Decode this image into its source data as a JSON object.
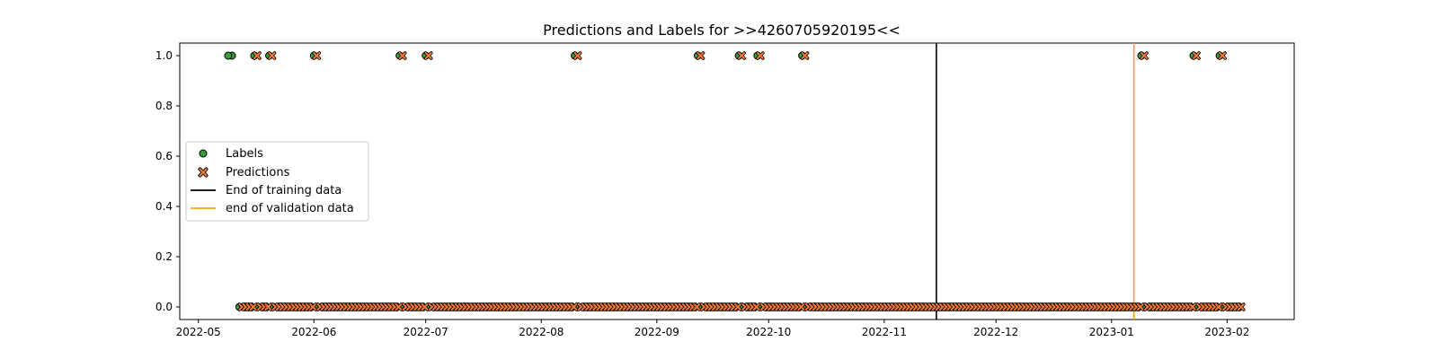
{
  "chart_data": {
    "type": "scatter",
    "title": "Predictions and Labels for >>4260705920195<<",
    "xlabel": "",
    "ylabel": "",
    "x_start": "2022-05-12",
    "x_end": "2023-02-04",
    "xlim": [
      "2022-04-26",
      "2023-02-19"
    ],
    "ylim": [
      -0.05,
      1.05
    ],
    "x_ticks": [
      "2022-05",
      "2022-06",
      "2022-07",
      "2022-08",
      "2022-09",
      "2022-10",
      "2022-11",
      "2022-12",
      "2023-01",
      "2023-02"
    ],
    "y_ticks": [
      "0.0",
      "0.2",
      "0.4",
      "0.6",
      "0.8",
      "1.0"
    ],
    "positive_dates": [
      "2022-05-09",
      "2022-05-10",
      "2022-05-16",
      "2022-05-20",
      "2022-06-01",
      "2022-06-24",
      "2022-07-01",
      "2022-08-10",
      "2022-09-12",
      "2022-09-23",
      "2022-09-28",
      "2022-10-10",
      "2023-01-09",
      "2023-01-23",
      "2023-01-30"
    ],
    "series": [
      {
        "name": "Labels",
        "marker": "circle",
        "color": "#3a9e3a"
      },
      {
        "name": "Predictions",
        "marker": "x",
        "color": "#f07a3a"
      }
    ],
    "vlines": [
      {
        "name": "End of training data",
        "x": "2022-11-15",
        "color": "#000000"
      },
      {
        "name": "end of validation data",
        "x": "2023-01-07",
        "color": "#ffa500"
      }
    ],
    "legend_position": "center-left",
    "grid": false
  }
}
